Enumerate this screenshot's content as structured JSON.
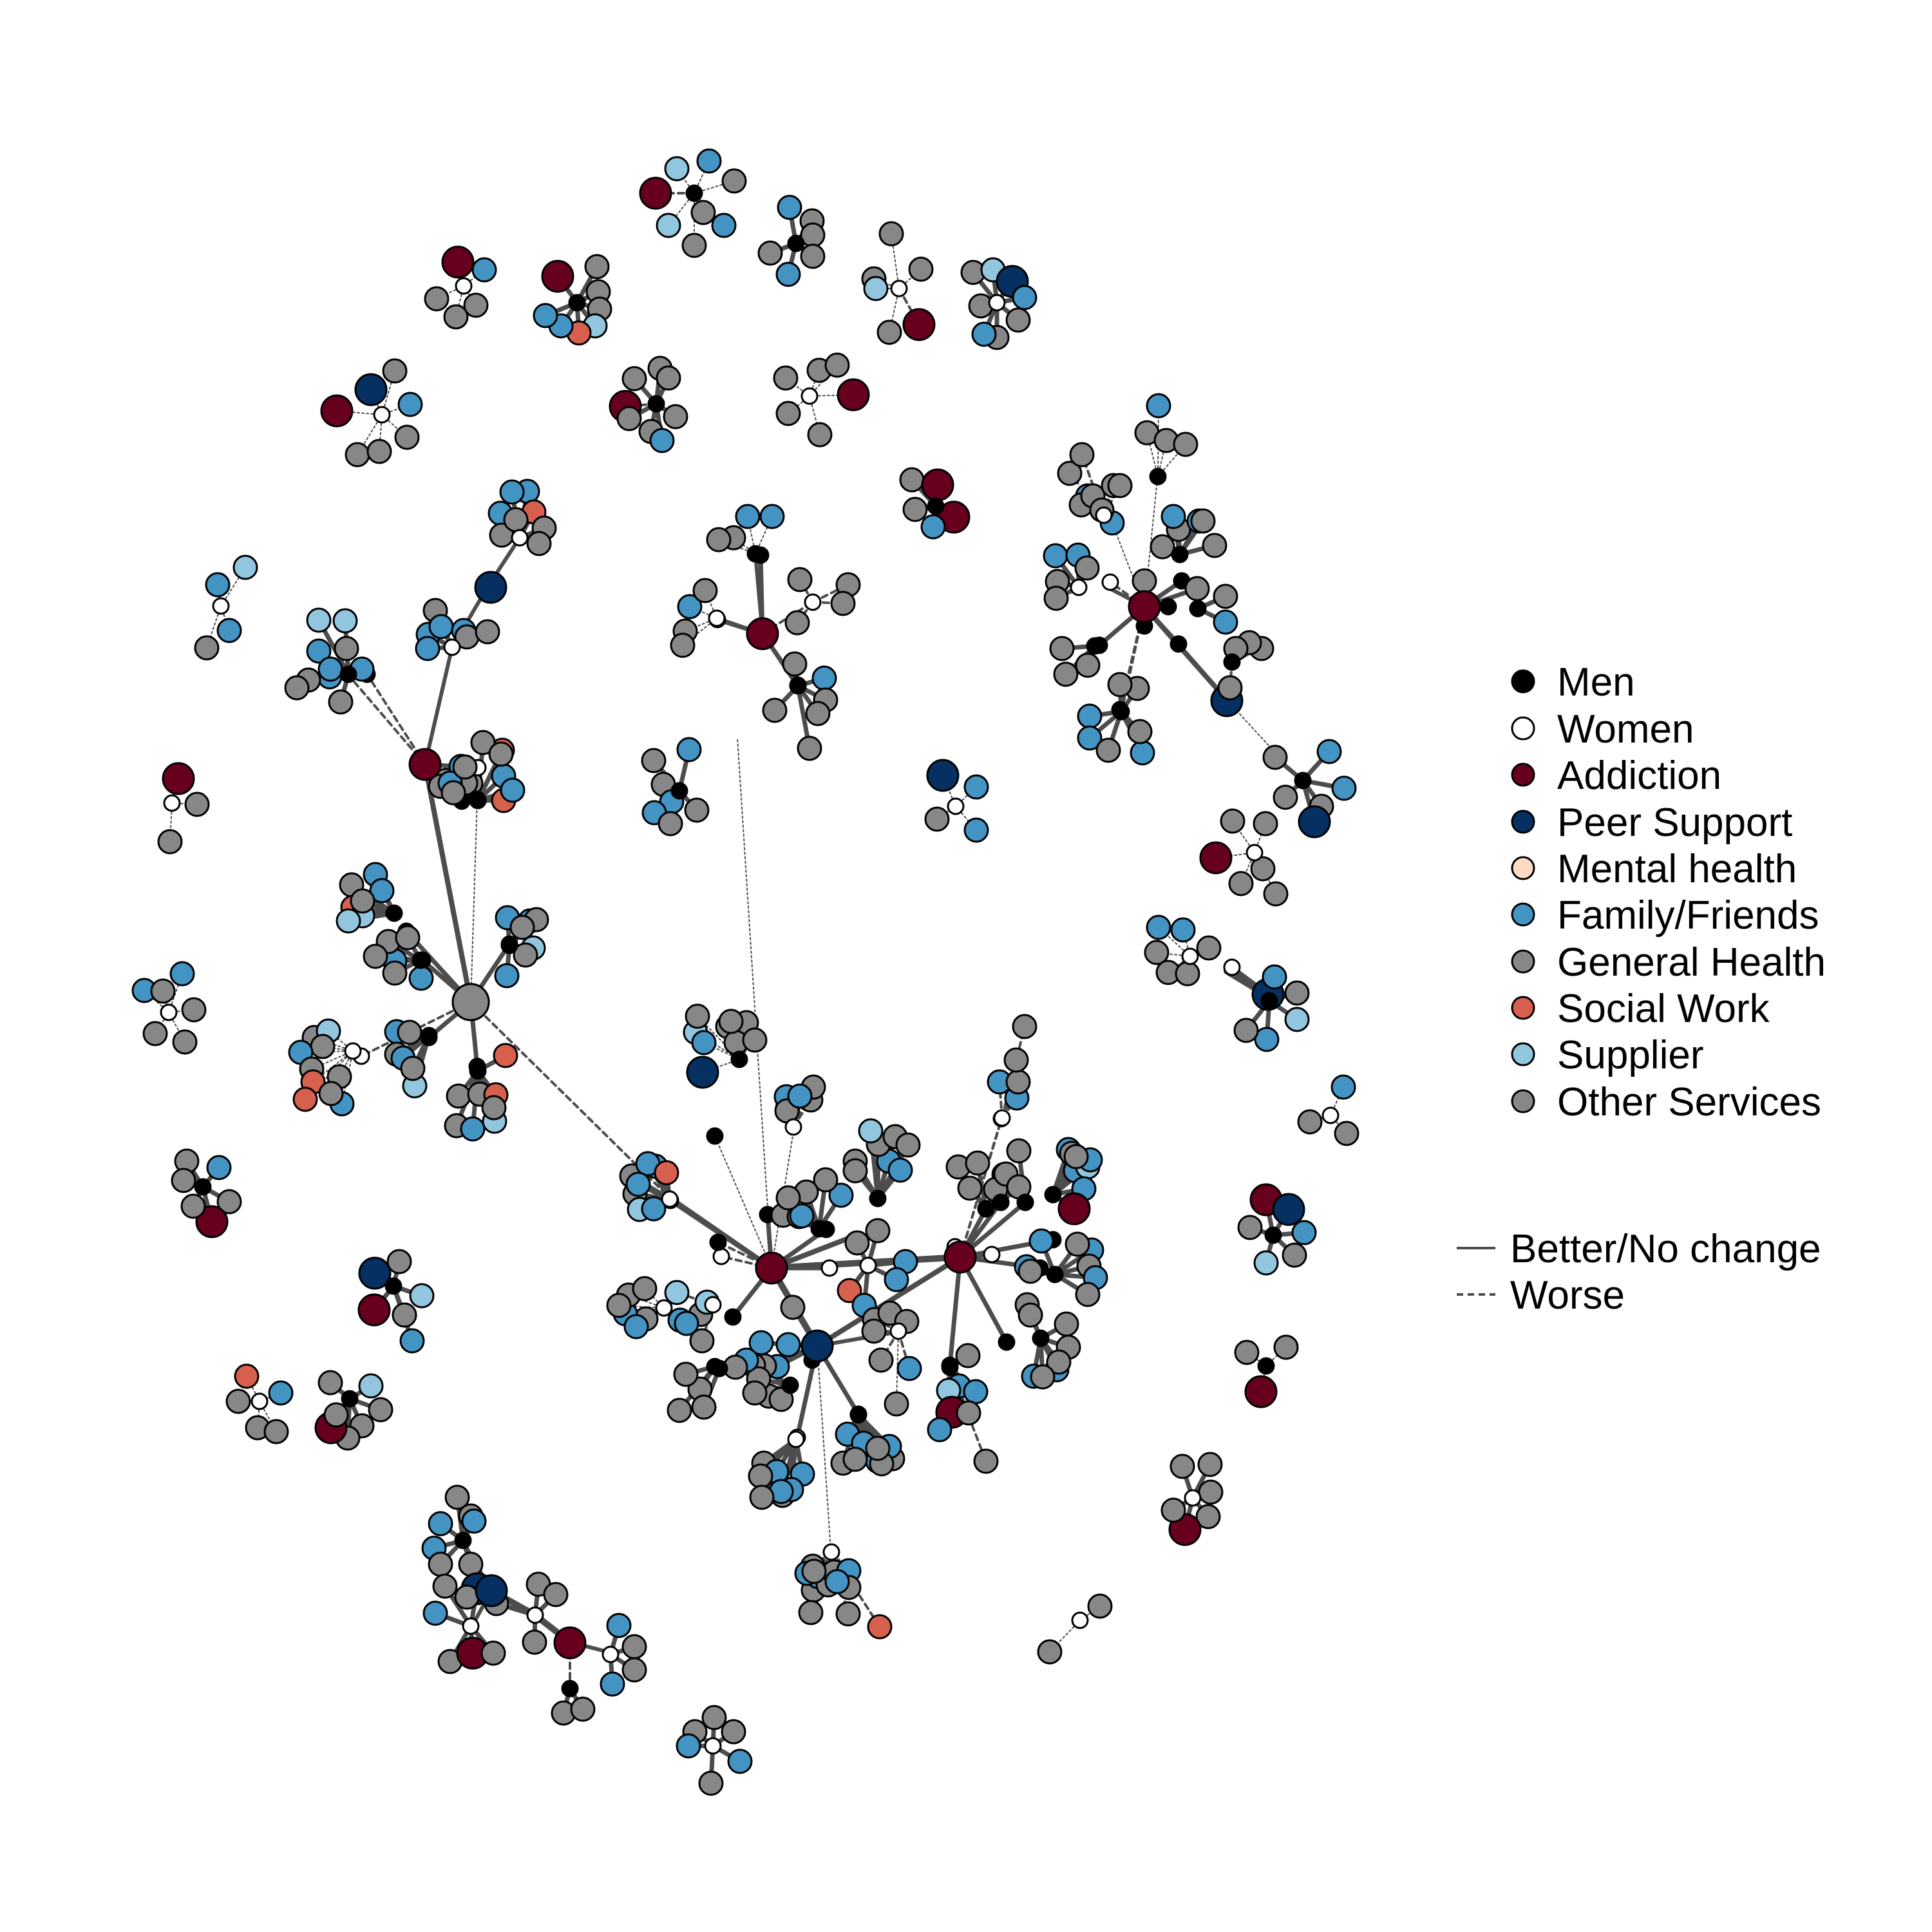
{
  "colors": {
    "men": "#000000",
    "women": "#ffffff",
    "addiction": "#67001f",
    "peer_support": "#053061",
    "mental_health": "#fddbc7",
    "family_friends": "#4393c3",
    "general_health": "#878787",
    "social_work": "#d6604d",
    "supplier": "#92c5de",
    "other_services": "#878787",
    "edge": "#4d4d4d",
    "outline": "#000000"
  },
  "legend": {
    "nodes": [
      {
        "label": "Men",
        "key": "men"
      },
      {
        "label": "Women",
        "key": "women"
      },
      {
        "label": "Addiction",
        "key": "addiction"
      },
      {
        "label": "Peer Support",
        "key": "peer_support"
      },
      {
        "label": "Mental health",
        "key": "mental_health"
      },
      {
        "label": "Family/Friends",
        "key": "family_friends"
      },
      {
        "label": "General Health",
        "key": "general_health"
      },
      {
        "label": "Social Work",
        "key": "social_work"
      },
      {
        "label": "Supplier",
        "key": "supplier"
      },
      {
        "label": "Other Services",
        "key": "other_services"
      }
    ],
    "edges": [
      {
        "label": "Better/No change",
        "style": "solid"
      },
      {
        "label": "Worse",
        "style": "dashed"
      }
    ]
  }
}
